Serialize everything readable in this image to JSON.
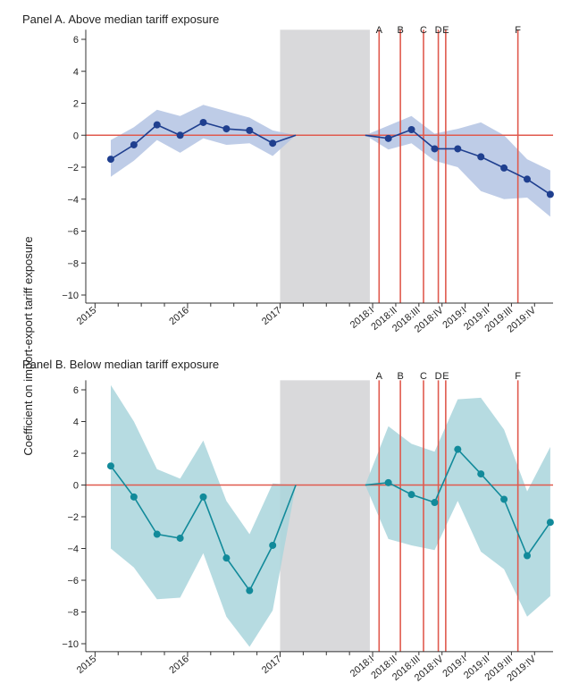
{
  "y_axis_label": "Coefficient on import-export tariff exposure",
  "colors": {
    "panel_a_line": "#1f3f8f",
    "panel_a_band": "#b3c3e3",
    "panel_b_line": "#128a9a",
    "panel_b_band": "#a9d5dc",
    "zero_line": "#e05a4e",
    "event_line": "#e05a4e",
    "gap_shade": "#d9d9db"
  },
  "events": [
    {
      "label": "A",
      "x": 2018.07
    },
    {
      "label": "B",
      "x": 2018.3
    },
    {
      "label": "C",
      "x": 2018.55
    },
    {
      "label": "D",
      "x": 2018.71
    },
    {
      "label": "E",
      "x": 2018.79
    },
    {
      "label": "F",
      "x": 2019.57
    }
  ],
  "x_ticks": [
    {
      "label": "2015",
      "x": 2015.0
    },
    {
      "label": "2016",
      "x": 2016.0
    },
    {
      "label": "2017",
      "x": 2017.0
    },
    {
      "label": "2018:I",
      "x": 2018.0
    },
    {
      "label": "2018:II",
      "x": 2018.25
    },
    {
      "label": "2018:III",
      "x": 2018.5
    },
    {
      "label": "2018:IV",
      "x": 2018.75
    },
    {
      "label": "2019:I",
      "x": 2019.0
    },
    {
      "label": "2019:II",
      "x": 2019.25
    },
    {
      "label": "2019:III",
      "x": 2019.5
    },
    {
      "label": "2019:IV",
      "x": 2019.75
    }
  ],
  "y_ticks": [
    "6",
    "4",
    "2",
    "0",
    "−2",
    "−4",
    "−6",
    "−8",
    "−10"
  ],
  "chart_data": [
    {
      "type": "line",
      "title": "Panel A. Above median tariff exposure",
      "ylim": [
        -10.5,
        6.5
      ],
      "xlim": [
        2014.9,
        2019.95
      ],
      "shaded_gap": [
        2017.0,
        2017.97
      ],
      "series": [
        {
          "segment": "pre",
          "x": [
            2015.17,
            2015.42,
            2015.67,
            2015.92,
            2016.17,
            2016.42,
            2016.67,
            2016.92,
            2017.17
          ],
          "values": [
            -1.5,
            -0.6,
            0.65,
            0.0,
            0.8,
            0.4,
            0.3,
            -0.5,
            0.0
          ],
          "lower": [
            -2.6,
            -1.6,
            -0.3,
            -1.1,
            -0.2,
            -0.6,
            -0.5,
            -1.3,
            0.0
          ],
          "upper": [
            -0.3,
            0.5,
            1.6,
            1.2,
            1.9,
            1.5,
            1.1,
            0.3,
            0.0
          ]
        },
        {
          "segment": "post",
          "x": [
            2017.92,
            2018.17,
            2018.42,
            2018.67,
            2018.92,
            2019.17,
            2019.42,
            2019.67,
            2019.92
          ],
          "values": [
            0.0,
            -0.2,
            0.35,
            -0.85,
            -0.85,
            -1.35,
            -2.05,
            -2.75,
            -3.7
          ],
          "lower": [
            0.0,
            -0.9,
            -0.5,
            -1.6,
            -2.0,
            -3.5,
            -4.0,
            -3.9,
            -5.1
          ],
          "upper": [
            0.0,
            0.6,
            1.2,
            0.1,
            0.4,
            0.8,
            0.0,
            -1.5,
            -2.2
          ]
        }
      ]
    },
    {
      "type": "line",
      "title": "Panel B. Below median tariff exposure",
      "ylim": [
        -10.5,
        6.5
      ],
      "xlim": [
        2014.9,
        2019.95
      ],
      "shaded_gap": [
        2017.0,
        2017.97
      ],
      "series": [
        {
          "segment": "pre",
          "x": [
            2015.17,
            2015.42,
            2015.67,
            2015.92,
            2016.17,
            2016.42,
            2016.67,
            2016.92,
            2017.17
          ],
          "values": [
            1.2,
            -0.75,
            -3.1,
            -3.35,
            -0.75,
            -4.6,
            -6.65,
            -3.8,
            0.0
          ],
          "lower": [
            -4.0,
            -5.2,
            -7.2,
            -7.1,
            -4.3,
            -8.3,
            -10.2,
            -7.9,
            0.0
          ],
          "upper": [
            6.3,
            4.0,
            1.0,
            0.4,
            2.8,
            -1.0,
            -3.1,
            0.1,
            0.0
          ]
        },
        {
          "segment": "post",
          "x": [
            2017.92,
            2018.17,
            2018.42,
            2018.67,
            2018.92,
            2019.17,
            2019.42,
            2019.67,
            2019.92
          ],
          "values": [
            0.0,
            0.15,
            -0.6,
            -1.1,
            2.25,
            0.7,
            -0.9,
            -4.45,
            -2.35
          ],
          "lower": [
            0.0,
            -3.4,
            -3.8,
            -4.1,
            -1.0,
            -4.2,
            -5.3,
            -8.3,
            -7.0
          ],
          "upper": [
            0.0,
            3.7,
            2.6,
            2.1,
            5.4,
            5.5,
            3.5,
            -0.4,
            2.4
          ]
        }
      ]
    }
  ]
}
